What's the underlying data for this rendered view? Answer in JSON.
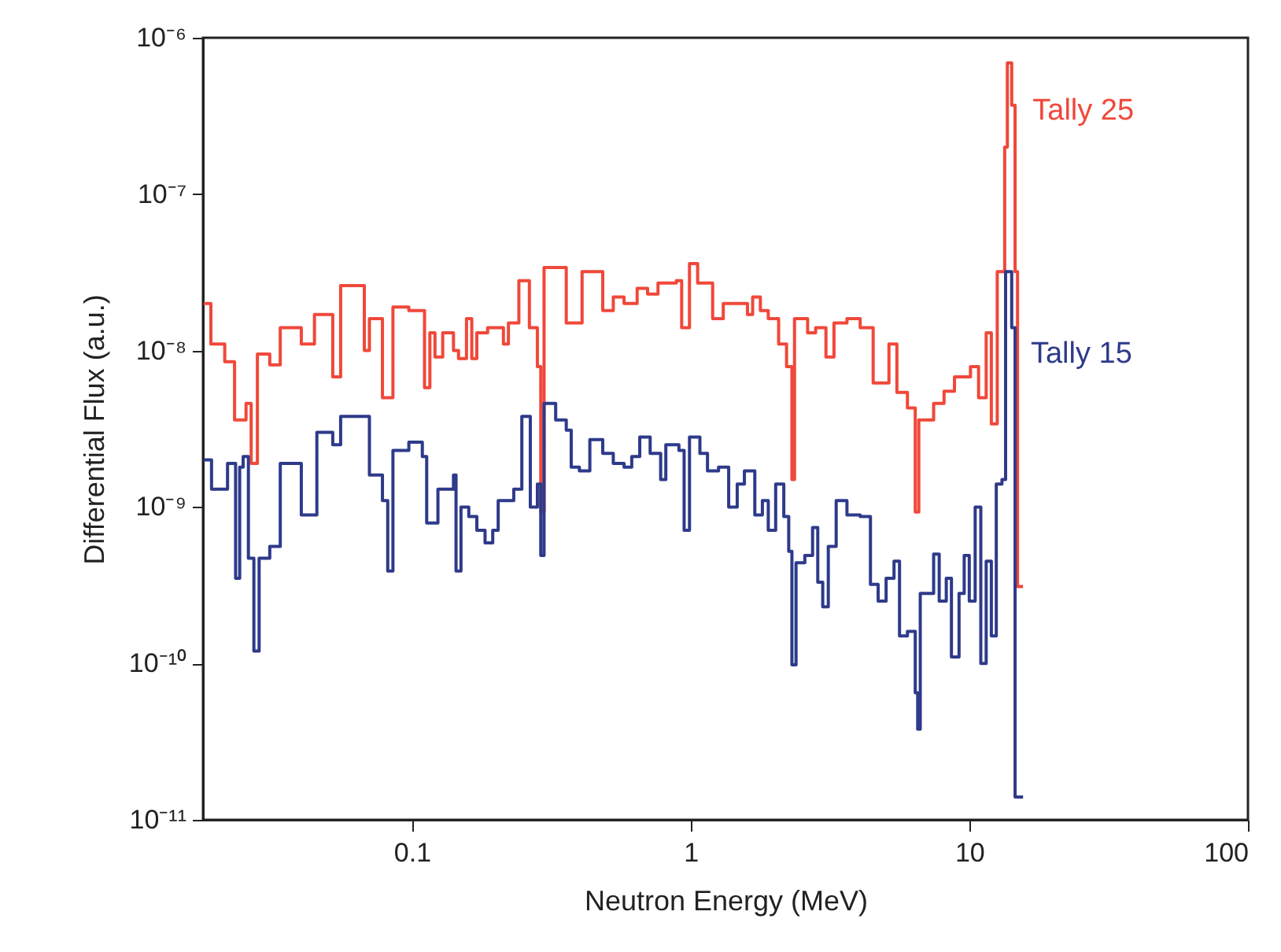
{
  "chart_data": {
    "type": "step",
    "xlabel": "Neutron Energy (MeV)",
    "ylabel": "Differential Flux (a.u.)",
    "log": "xy",
    "grid": false,
    "legend": false,
    "line_style": "solid",
    "marker": "none",
    "xlim": [
      0.0178,
      100
    ],
    "xticks": [
      0.1,
      1,
      10,
      100
    ],
    "ylim": [
      1e-11,
      1e-06
    ],
    "yticks": [
      {
        "value": 1e-11,
        "label": "10⁻¹¹"
      },
      {
        "value": 1e-10,
        "label": "10⁻¹⁰"
      },
      {
        "value": 1e-09,
        "label": "10⁻⁹"
      },
      {
        "value": 1e-08,
        "label": "10⁻⁸"
      },
      {
        "value": 1e-07,
        "label": "10⁻⁷"
      },
      {
        "value": 1e-06,
        "label": "10⁻⁶"
      }
    ],
    "series": [
      {
        "name": "Tally 25",
        "color": "#f0483a",
        "x": [
          0.0179,
          0.019,
          0.0213,
          0.0231,
          0.0254,
          0.0265,
          0.0279,
          0.0309,
          0.0337,
          0.0401,
          0.0447,
          0.052,
          0.0555,
          0.0675,
          0.0704,
          0.0784,
          0.0855,
          0.0975,
          0.111,
          0.116,
          0.121,
          0.129,
          0.141,
          0.147,
          0.157,
          0.164,
          0.171,
          0.187,
          0.213,
          0.222,
          0.242,
          0.264,
          0.282,
          0.29,
          0.298,
          0.358,
          0.408,
          0.484,
          0.528,
          0.577,
          0.643,
          0.701,
          0.764,
          0.889,
          0.929,
          0.991,
          1.06,
          1.2,
          1.31,
          1.47,
          1.6,
          1.67,
          1.78,
          1.9,
          2.07,
          2.21,
          2.31,
          2.36,
          2.63,
          2.81,
          3.06,
          3.27,
          3.64,
          4.06,
          4.52,
          5.15,
          5.5,
          6.0,
          6.4,
          6.59,
          7.45,
          8.12,
          8.85,
          10.1,
          10.8,
          11.5,
          12.0,
          12.6,
          13.4,
          13.7,
          14.2,
          14.6,
          14.9,
          15.6
        ],
        "values": [
          2e-08,
          1.1e-08,
          8.5e-09,
          3.6e-09,
          4.6e-09,
          1.9e-09,
          9.5e-09,
          8.1e-09,
          1.4e-08,
          1.1e-08,
          1.7e-08,
          6.8e-09,
          2.6e-08,
          1e-08,
          1.6e-08,
          5e-09,
          1.9e-08,
          1.8e-08,
          5.8e-09,
          1.3e-08,
          9.1e-09,
          1.3e-08,
          1e-08,
          8.9e-09,
          1.6e-08,
          8.9e-09,
          1.3e-08,
          1.4e-08,
          1.1e-08,
          1.5e-08,
          2.8e-08,
          1.4e-08,
          7.9e-09,
          9.3e-10,
          3.4e-08,
          1.5e-08,
          3.2e-08,
          1.8e-08,
          2.2e-08,
          2e-08,
          2.5e-08,
          2.3e-08,
          2.7e-08,
          2.8e-08,
          1.4e-08,
          3.6e-08,
          2.7e-08,
          1.6e-08,
          2e-08,
          2e-08,
          1.7e-08,
          2.2e-08,
          1.8e-08,
          1.6e-08,
          1.1e-08,
          7.9e-09,
          1.5e-09,
          1.6e-08,
          1.3e-08,
          1.4e-08,
          9.1e-09,
          1.5e-08,
          1.6e-08,
          1.4e-08,
          6.2e-09,
          1.1e-08,
          5.4e-09,
          4.3e-09,
          9.3e-10,
          3.6e-09,
          4.6e-09,
          5.5e-09,
          6.8e-09,
          7.9e-09,
          5e-09,
          1.3e-08,
          3.4e-09,
          3.2e-08,
          2e-07,
          6.9e-07,
          3.7e-07,
          3.2e-08,
          3.1e-10,
          3.1e-10
        ]
      },
      {
        "name": "Tally 15",
        "color": "#2e3a8a",
        "x": [
          0.0179,
          0.0191,
          0.0218,
          0.0233,
          0.0241,
          0.0248,
          0.0259,
          0.0271,
          0.0283,
          0.0309,
          0.0337,
          0.0401,
          0.0456,
          0.052,
          0.0555,
          0.0704,
          0.0784,
          0.0819,
          0.0855,
          0.0975,
          0.109,
          0.113,
          0.124,
          0.141,
          0.144,
          0.15,
          0.16,
          0.171,
          0.183,
          0.195,
          0.204,
          0.232,
          0.248,
          0.266,
          0.282,
          0.29,
          0.298,
          0.328,
          0.358,
          0.373,
          0.399,
          0.435,
          0.484,
          0.528,
          0.577,
          0.615,
          0.657,
          0.716,
          0.781,
          0.815,
          0.908,
          0.948,
          0.991,
          1.08,
          1.15,
          1.26,
          1.37,
          1.47,
          1.56,
          1.7,
          1.81,
          1.9,
          2.02,
          2.16,
          2.25,
          2.31,
          2.39,
          2.57,
          2.74,
          2.86,
          2.98,
          3.12,
          3.33,
          3.64,
          4.06,
          4.42,
          4.71,
          5.03,
          5.37,
          5.62,
          6.0,
          6.4,
          6.53,
          6.67,
          7.45,
          7.8,
          8.27,
          8.63,
          9.19,
          9.59,
          10.0,
          10.5,
          11.0,
          11.5,
          12.0,
          12.5,
          13.1,
          13.5,
          14.2,
          14.6,
          15.6
        ],
        "values": [
          2e-09,
          1.3e-09,
          1.9e-09,
          3.5e-10,
          1.8e-09,
          2.1e-09,
          4.7e-10,
          1.2e-10,
          4.7e-10,
          5.6e-10,
          1.9e-09,
          8.9e-10,
          3e-09,
          2.5e-09,
          3.8e-09,
          1.6e-09,
          1.1e-09,
          3.9e-10,
          2.3e-09,
          2.6e-09,
          2.1e-09,
          7.9e-10,
          1.3e-09,
          1.6e-09,
          3.9e-10,
          1e-09,
          8.7e-10,
          7.1e-10,
          5.9e-10,
          7.1e-10,
          1.1e-09,
          1.3e-09,
          3.8e-09,
          1e-09,
          1.4e-09,
          4.9e-10,
          4.6e-09,
          3.6e-09,
          3.1e-09,
          1.8e-09,
          1.7e-09,
          2.7e-09,
          2.2e-09,
          1.9e-09,
          1.8e-09,
          2.1e-09,
          2.8e-09,
          2.2e-09,
          1.5e-09,
          2.5e-09,
          2.3e-09,
          7.1e-10,
          2.8e-09,
          2.2e-09,
          1.7e-09,
          1.8e-09,
          1e-09,
          1.4e-09,
          1.7e-09,
          8.9e-10,
          1.1e-09,
          7.1e-10,
          1.4e-09,
          8.7e-10,
          5.2e-10,
          9.8e-11,
          4.4e-10,
          4.9e-10,
          7.4e-10,
          3.3e-10,
          2.3e-10,
          5.6e-10,
          1.1e-09,
          8.9e-10,
          8.7e-10,
          3.2e-10,
          2.5e-10,
          3.5e-10,
          4.5e-10,
          1.5e-10,
          1.6e-10,
          6.5e-11,
          3.8e-11,
          2.8e-10,
          5e-10,
          2.5e-10,
          3.5e-10,
          1.1e-10,
          2.8e-10,
          4.9e-10,
          2.5e-10,
          1e-09,
          1e-10,
          4.5e-10,
          1.5e-10,
          1.4e-09,
          1.5e-09,
          3.2e-08,
          1.4e-08,
          1.4e-11,
          1.4e-11
        ]
      }
    ]
  }
}
